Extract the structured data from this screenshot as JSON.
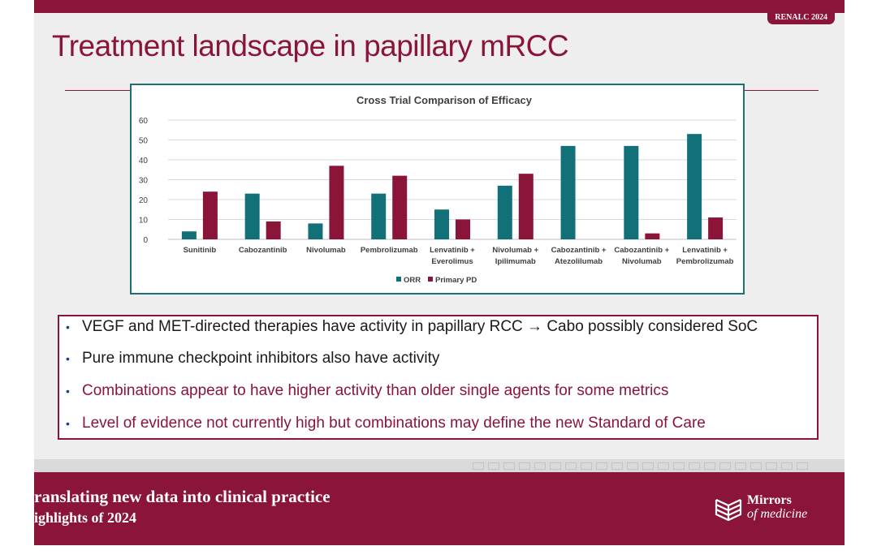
{
  "header": {
    "badge": "RENALC 2024",
    "title": "Treatment landscape in papillary mRCC"
  },
  "colors": {
    "brand": "#8a1538",
    "teal": "#1b6f75",
    "orr": "#127178",
    "pd": "#8a1538"
  },
  "chart_data": {
    "type": "bar",
    "title": "Cross Trial Comparison of Efficacy",
    "categories": [
      [
        "Sunitinib"
      ],
      [
        "Cabozantinib"
      ],
      [
        "Nivolumab"
      ],
      [
        "Pembrolizumab"
      ],
      [
        "Lenvatinib +",
        "Everolimus"
      ],
      [
        "Nivolumab +",
        "Ipilimumab"
      ],
      [
        "Cabozantinib +",
        "Atezolilumab"
      ],
      [
        "Cabozantinib +",
        "Nivolumab"
      ],
      [
        "Lenvatinib +",
        "Pembrolizumab"
      ]
    ],
    "series": [
      {
        "name": "ORR",
        "color": "#127178",
        "values": [
          4,
          23,
          8,
          23,
          15,
          27,
          47,
          47,
          53
        ]
      },
      {
        "name": "Primary PD",
        "color": "#8a1538",
        "values": [
          24,
          9,
          37,
          32,
          10,
          33,
          0,
          3,
          11
        ]
      }
    ],
    "ylim": [
      0,
      60
    ],
    "yticks": [
      0,
      10,
      20,
      30,
      40,
      50,
      60
    ],
    "grid": true,
    "legend_position": "bottom"
  },
  "bullets": [
    {
      "text": "VEGF and MET-directed therapies have activity in papillary RCC → Cabo possibly considered SoC",
      "color": "#1a1a1a"
    },
    {
      "text": "Pure immune checkpoint inhibitors also have activity",
      "color": "#1a1a1a"
    },
    {
      "text": "Combinations appear to have higher activity than older single agents for some metrics",
      "color": "#8a1538"
    },
    {
      "text": "Level of evidence not currently high but combinations may define the new Standard of Care",
      "color": "#8a1538"
    }
  ],
  "footer": {
    "line1": "ranslating new data into clinical practice",
    "line2": "ighlights of 2024",
    "logo_line1": "Mirrors",
    "logo_line2": "of medicine"
  }
}
